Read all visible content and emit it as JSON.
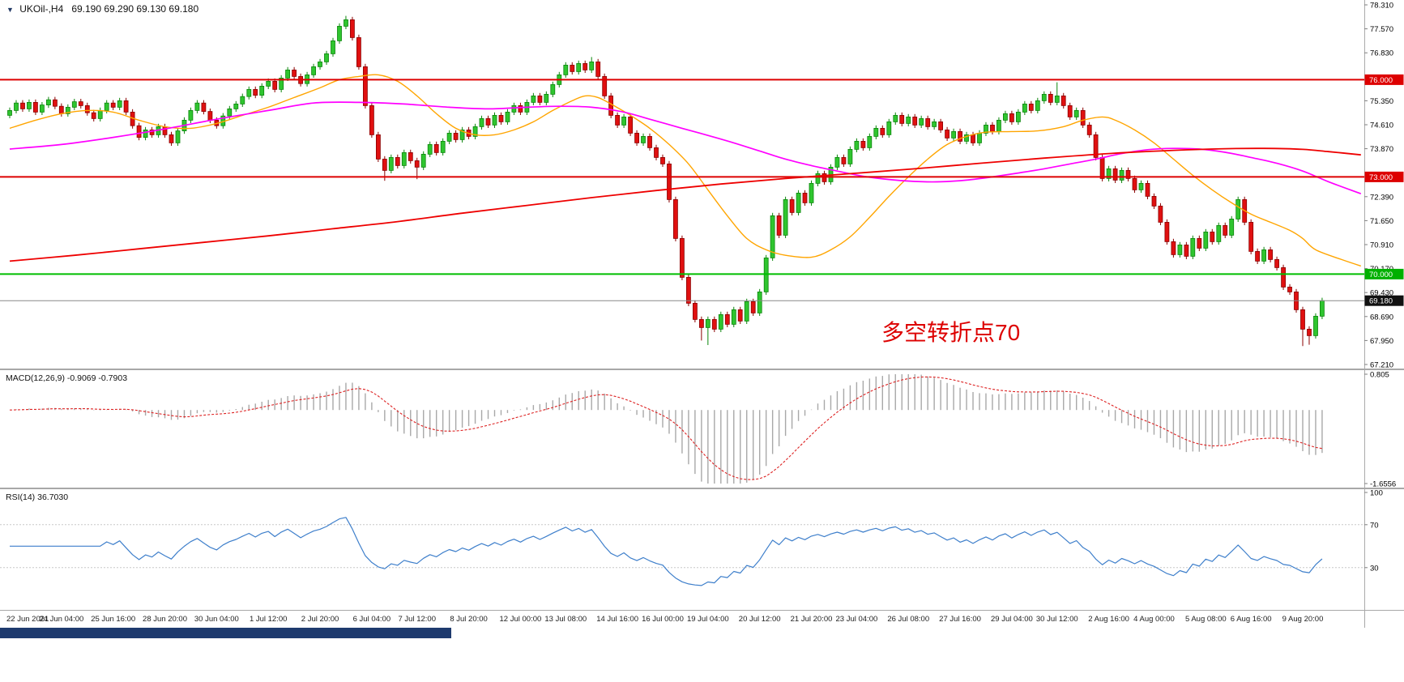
{
  "window": {
    "symbol_timeframe": "UKOil-,H4",
    "quote": "69.190 69.290 69.130 69.180"
  },
  "annotation": {
    "text": "多空转折点70",
    "color": "#DD0000"
  },
  "indicators": {
    "macd": {
      "label": "MACD(12,26,9)",
      "value": "-0.9069",
      "signal_value": "-0.7903",
      "scale_max": "0.805",
      "scale_min": "-1.6556"
    },
    "rsi": {
      "label": "RSI(14)",
      "value": "36.7030",
      "scale_labels": [
        "100",
        "70",
        "30"
      ]
    }
  },
  "price_axis": {
    "labels": [
      "78.310",
      "77.570",
      "76.830",
      "75.350",
      "74.610",
      "73.870",
      "72.390",
      "71.650",
      "70.910",
      "70.170",
      "69.430",
      "68.690",
      "67.950",
      "67.210"
    ]
  },
  "time_axis": {
    "labels": [
      {
        "i": 0,
        "t": "22 Jun 2021"
      },
      {
        "i": 8,
        "t": "24 Jun 04:00"
      },
      {
        "i": 16,
        "t": "25 Jun 16:00"
      },
      {
        "i": 24,
        "t": "28 Jun 20:00"
      },
      {
        "i": 32,
        "t": "30 Jun 04:00"
      },
      {
        "i": 40,
        "t": "1 Jul 12:00"
      },
      {
        "i": 48,
        "t": "2 Jul 20:00"
      },
      {
        "i": 56,
        "t": "6 Jul 04:00"
      },
      {
        "i": 63,
        "t": "7 Jul 12:00"
      },
      {
        "i": 71,
        "t": "8 Jul 20:00"
      },
      {
        "i": 79,
        "t": "12 Jul 00:00"
      },
      {
        "i": 86,
        "t": "13 Jul 08:00"
      },
      {
        "i": 94,
        "t": "14 Jul 16:00"
      },
      {
        "i": 101,
        "t": "16 Jul 00:00"
      },
      {
        "i": 108,
        "t": "19 Jul 04:00"
      },
      {
        "i": 116,
        "t": "20 Jul 12:00"
      },
      {
        "i": 124,
        "t": "21 Jul 20:00"
      },
      {
        "i": 131,
        "t": "23 Jul 04:00"
      },
      {
        "i": 139,
        "t": "26 Jul 08:00"
      },
      {
        "i": 147,
        "t": "27 Jul 16:00"
      },
      {
        "i": 155,
        "t": "29 Jul 04:00"
      },
      {
        "i": 162,
        "t": "30 Jul 12:00"
      },
      {
        "i": 170,
        "t": "2 Aug 16:00"
      },
      {
        "i": 177,
        "t": "4 Aug 00:00"
      },
      {
        "i": 185,
        "t": "5 Aug 08:00"
      },
      {
        "i": 192,
        "t": "6 Aug 16:00"
      },
      {
        "i": 200,
        "t": "9 Aug 20:00"
      }
    ]
  },
  "colors": {
    "up": "#2FC52F",
    "up_border": "#0B860B",
    "down": "#E01010",
    "down_border": "#8B0000",
    "macd_hist": "#A8A8A8",
    "macd_signal": "#DD2222",
    "rsi_line": "#3E7FCB",
    "rsi_level": "#C8C8C8",
    "axis_tick": "#808080",
    "scale_line": "#ABABAB",
    "badge_fg": "#FFFFFF"
  },
  "chart_data": {
    "type": "candlestick+indicators",
    "symbol": "UKOil-",
    "timeframe": "H4",
    "price_range": [
      67.21,
      78.31
    ],
    "grid": false,
    "first_open": 74.9,
    "closes": [
      75.05,
      75.28,
      75.1,
      75.3,
      75.0,
      75.22,
      75.38,
      75.18,
      74.95,
      75.15,
      75.32,
      75.2,
      74.98,
      74.8,
      75.05,
      75.28,
      75.15,
      75.35,
      75.0,
      74.58,
      74.22,
      74.45,
      74.3,
      74.55,
      74.3,
      74.05,
      74.42,
      74.75,
      75.05,
      75.28,
      75.02,
      74.75,
      74.58,
      74.88,
      75.1,
      75.25,
      75.48,
      75.7,
      75.52,
      75.8,
      75.95,
      75.7,
      76.05,
      76.3,
      76.1,
      75.88,
      76.15,
      76.4,
      76.55,
      76.8,
      77.2,
      77.65,
      77.85,
      77.3,
      76.4,
      75.2,
      74.3,
      73.55,
      73.2,
      73.6,
      73.35,
      73.75,
      73.5,
      73.3,
      73.7,
      74.0,
      73.75,
      74.1,
      74.35,
      74.15,
      74.45,
      74.25,
      74.55,
      74.8,
      74.6,
      74.9,
      74.7,
      75.0,
      75.2,
      75.0,
      75.3,
      75.5,
      75.3,
      75.55,
      75.85,
      76.15,
      76.45,
      76.25,
      76.5,
      76.3,
      76.55,
      76.1,
      75.5,
      74.9,
      74.6,
      74.85,
      74.35,
      74.05,
      74.25,
      73.9,
      73.6,
      73.4,
      72.3,
      71.1,
      69.9,
      69.1,
      68.6,
      68.35,
      68.6,
      68.3,
      68.75,
      68.45,
      68.9,
      68.55,
      69.15,
      68.8,
      69.45,
      70.5,
      71.8,
      71.2,
      72.3,
      71.9,
      72.5,
      72.2,
      72.8,
      73.1,
      72.85,
      73.3,
      73.6,
      73.4,
      73.85,
      74.1,
      73.9,
      74.25,
      74.5,
      74.3,
      74.7,
      74.9,
      74.65,
      74.85,
      74.6,
      74.8,
      74.55,
      74.7,
      74.45,
      74.2,
      74.4,
      74.1,
      74.3,
      74.05,
      74.35,
      74.6,
      74.4,
      74.75,
      74.95,
      74.7,
      75.0,
      75.25,
      75.05,
      75.35,
      75.55,
      75.3,
      75.5,
      75.2,
      74.85,
      75.05,
      74.6,
      74.3,
      73.6,
      72.95,
      73.25,
      72.9,
      73.2,
      72.95,
      72.6,
      72.8,
      72.4,
      72.1,
      71.6,
      71.0,
      70.6,
      70.9,
      70.55,
      71.1,
      70.8,
      71.3,
      71.0,
      71.5,
      71.2,
      71.7,
      72.3,
      71.6,
      70.7,
      70.4,
      70.75,
      70.45,
      70.2,
      69.6,
      69.45,
      68.9,
      68.3,
      68.1,
      68.7,
      69.18
    ],
    "default_wick": 0.09,
    "wick_overrides": {
      "52": [
        77.97,
        null
      ],
      "58": [
        null,
        72.88
      ],
      "63": [
        null,
        72.93
      ],
      "90": [
        76.7,
        null
      ],
      "107": [
        null,
        67.95
      ],
      "108": [
        null,
        67.81
      ],
      "162": [
        75.92,
        null
      ],
      "200": [
        null,
        67.78
      ],
      "201": [
        null,
        67.82
      ]
    },
    "levels": [
      {
        "t": "76.000",
        "color": "#DD0000",
        "badge": "#DD0000",
        "width": 2,
        "current": false
      },
      {
        "t": "73.000",
        "color": "#DD0000",
        "badge": "#DD0000",
        "width": 2,
        "current": false
      },
      {
        "t": "70.000",
        "color": "#00BE00",
        "badge": "#00B000",
        "width": 2,
        "current": false
      },
      {
        "t": "69.180",
        "color": "#888888",
        "badge": "#111111",
        "width": 1,
        "current": true
      }
    ],
    "ma_lines": [
      {
        "name": "ma-fast",
        "color": "#FFA500",
        "width": 1.4,
        "points": [
          [
            0,
            74.5
          ],
          [
            4,
            74.75
          ],
          [
            8,
            74.95
          ],
          [
            12,
            75.05
          ],
          [
            16,
            75.0
          ],
          [
            20,
            74.75
          ],
          [
            24,
            74.55
          ],
          [
            28,
            74.5
          ],
          [
            32,
            74.65
          ],
          [
            36,
            74.9
          ],
          [
            40,
            75.15
          ],
          [
            44,
            75.45
          ],
          [
            48,
            75.75
          ],
          [
            51,
            76.0
          ],
          [
            54,
            76.1
          ],
          [
            57,
            76.15
          ],
          [
            60,
            75.95
          ],
          [
            63,
            75.5
          ],
          [
            66,
            74.95
          ],
          [
            69,
            74.5
          ],
          [
            72,
            74.3
          ],
          [
            75,
            74.3
          ],
          [
            78,
            74.45
          ],
          [
            81,
            74.7
          ],
          [
            84,
            75.05
          ],
          [
            87,
            75.35
          ],
          [
            89,
            75.5
          ],
          [
            91,
            75.45
          ],
          [
            93,
            75.25
          ],
          [
            96,
            74.9
          ],
          [
            99,
            74.5
          ],
          [
            102,
            74.0
          ],
          [
            105,
            73.4
          ],
          [
            108,
            72.6
          ],
          [
            111,
            71.8
          ],
          [
            114,
            71.1
          ],
          [
            117,
            70.75
          ],
          [
            120,
            70.58
          ],
          [
            124,
            70.52
          ],
          [
            127,
            70.75
          ],
          [
            130,
            71.15
          ],
          [
            133,
            71.75
          ],
          [
            136,
            72.4
          ],
          [
            139,
            73.0
          ],
          [
            142,
            73.55
          ],
          [
            145,
            74.0
          ],
          [
            148,
            74.25
          ],
          [
            151,
            74.38
          ],
          [
            155,
            74.4
          ],
          [
            159,
            74.42
          ],
          [
            163,
            74.55
          ],
          [
            166,
            74.75
          ],
          [
            169,
            74.85
          ],
          [
            171,
            74.75
          ],
          [
            174,
            74.45
          ],
          [
            177,
            74.05
          ],
          [
            180,
            73.55
          ],
          [
            183,
            73.05
          ],
          [
            186,
            72.6
          ],
          [
            189,
            72.2
          ],
          [
            192,
            71.85
          ],
          [
            195,
            71.6
          ],
          [
            198,
            71.35
          ],
          [
            200,
            71.1
          ],
          [
            202,
            70.75
          ],
          [
            206,
            70.45
          ],
          [
            209,
            70.25
          ]
        ]
      },
      {
        "name": "ma-mid",
        "color": "#FF00FF",
        "width": 1.7,
        "points": [
          [
            0,
            73.86
          ],
          [
            8,
            74.0
          ],
          [
            16,
            74.22
          ],
          [
            24,
            74.48
          ],
          [
            32,
            74.78
          ],
          [
            40,
            75.05
          ],
          [
            47,
            75.28
          ],
          [
            54,
            75.3
          ],
          [
            61,
            75.25
          ],
          [
            68,
            75.15
          ],
          [
            74,
            75.1
          ],
          [
            80,
            75.15
          ],
          [
            85,
            75.18
          ],
          [
            90,
            75.15
          ],
          [
            95,
            75.0
          ],
          [
            99,
            74.78
          ],
          [
            104,
            74.5
          ],
          [
            108,
            74.28
          ],
          [
            112,
            74.05
          ],
          [
            116,
            73.8
          ],
          [
            120,
            73.55
          ],
          [
            124,
            73.35
          ],
          [
            128,
            73.18
          ],
          [
            132,
            73.02
          ],
          [
            136,
            72.92
          ],
          [
            140,
            72.86
          ],
          [
            144,
            72.85
          ],
          [
            148,
            72.9
          ],
          [
            152,
            73.0
          ],
          [
            156,
            73.12
          ],
          [
            160,
            73.25
          ],
          [
            164,
            73.4
          ],
          [
            168,
            73.55
          ],
          [
            172,
            73.72
          ],
          [
            176,
            73.84
          ],
          [
            180,
            73.88
          ],
          [
            184,
            73.86
          ],
          [
            188,
            73.76
          ],
          [
            192,
            73.6
          ],
          [
            196,
            73.42
          ],
          [
            200,
            73.18
          ],
          [
            204,
            72.85
          ],
          [
            209,
            72.48
          ]
        ]
      },
      {
        "name": "ma-slow",
        "color": "#EE0000",
        "width": 1.8,
        "points": [
          [
            0,
            70.4
          ],
          [
            10,
            70.58
          ],
          [
            20,
            70.78
          ],
          [
            30,
            70.98
          ],
          [
            40,
            71.18
          ],
          [
            50,
            71.4
          ],
          [
            60,
            71.62
          ],
          [
            70,
            71.88
          ],
          [
            80,
            72.12
          ],
          [
            90,
            72.36
          ],
          [
            100,
            72.58
          ],
          [
            110,
            72.78
          ],
          [
            120,
            72.95
          ],
          [
            130,
            73.1
          ],
          [
            140,
            73.25
          ],
          [
            150,
            73.42
          ],
          [
            160,
            73.58
          ],
          [
            170,
            73.72
          ],
          [
            180,
            73.82
          ],
          [
            188,
            73.87
          ],
          [
            194,
            73.88
          ],
          [
            200,
            73.85
          ],
          [
            204,
            73.78
          ],
          [
            209,
            73.68
          ]
        ]
      }
    ],
    "macd": {
      "fast": 12,
      "slow": 26,
      "signal": 9,
      "range": [
        -1.6556,
        0.805
      ]
    },
    "rsi": {
      "period": 14,
      "range": [
        0,
        100
      ],
      "levels": [
        70,
        30
      ]
    }
  }
}
